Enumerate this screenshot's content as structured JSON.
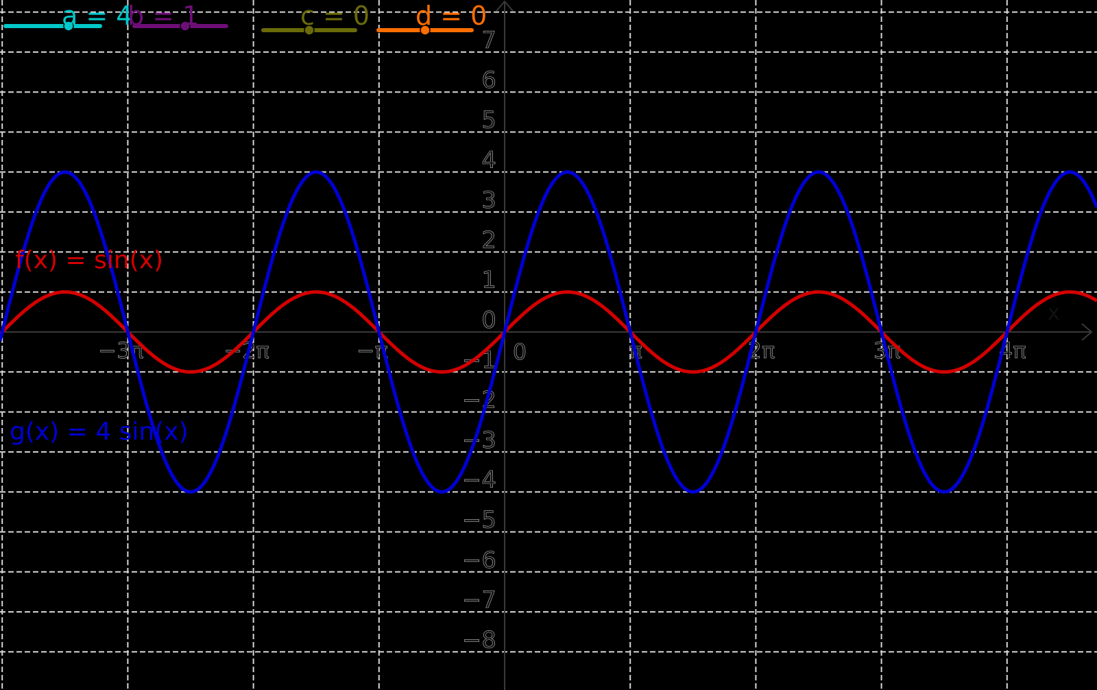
{
  "chart_data": {
    "type": "line",
    "title": "",
    "xlabel": "x",
    "ylabel": "",
    "xlim_radians": [
      -12.6,
      14.5
    ],
    "ylim": [
      -8.7,
      8.3
    ],
    "grid": true,
    "x_ticks": [
      "-3π",
      "-2π",
      "-π",
      "0",
      "π",
      "2π",
      "3π",
      "4π"
    ],
    "x_tick_values": [
      -9.4248,
      -6.2832,
      -3.1416,
      0,
      3.1416,
      6.2832,
      9.4248,
      12.5664
    ],
    "y_ticks": [
      "7",
      "6",
      "5",
      "4",
      "3",
      "2",
      "1",
      "0",
      "−1",
      "−2",
      "−3",
      "−4",
      "−5",
      "−6",
      "−7",
      "−8"
    ],
    "y_tick_values": [
      7,
      6,
      5,
      4,
      3,
      2,
      1,
      0,
      -1,
      -2,
      -3,
      -4,
      -5,
      -6,
      -7,
      -8
    ],
    "series": [
      {
        "name": "f(x) = sin(x)",
        "expression": "sin(x)",
        "amplitude": 1,
        "color": "#d40000"
      },
      {
        "name": "g(x) = 4 sin(x)",
        "expression": "4 sin(x)",
        "amplitude": 4,
        "color": "#0000d4"
      }
    ],
    "sliders": [
      {
        "name": "a",
        "value": 4,
        "color": "#00c8c8"
      },
      {
        "name": "b",
        "value": 1,
        "color": "#6e0f78"
      },
      {
        "name": "c",
        "value": 0,
        "color": "#6b6b0a"
      },
      {
        "name": "d",
        "value": 0,
        "color": "#ff6e00"
      }
    ]
  },
  "labels": {
    "f": "f(x) = sin(x)",
    "g": "g(x) = 4 sin(x)",
    "a": "a = 4",
    "b": "b = 1",
    "c": "c = 0",
    "d": "d = 0",
    "x_axis": "x"
  },
  "colors": {
    "background": "#000000",
    "grid": "#d8d8d8",
    "axis": "#3a3a3a",
    "tick_text": "#111111",
    "f": "#d40000",
    "g": "#0000d4"
  }
}
